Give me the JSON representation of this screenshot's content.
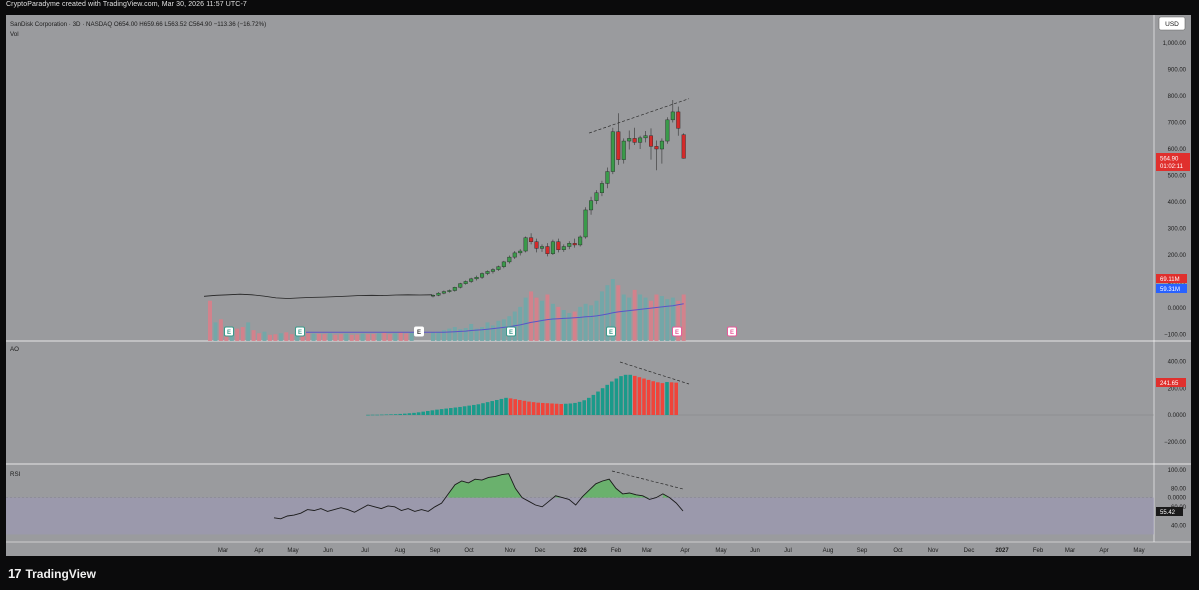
{
  "attribution": "CryptoParadyme created with TradingView.com, Mar 30, 2026 11:57 UTC-7",
  "header": {
    "symbol_line": "SanDisk Corporation · 3D · NASDAQ  O654.00  H659.66  L563.52  C564.90  −113.36 (−16.72%)",
    "vol_label": "Vol"
  },
  "currency_button": "USD",
  "last_price": {
    "value": "564.90",
    "countdown": "01:02:11",
    "color": "#e0302d"
  },
  "volume_badges": [
    {
      "value": "69.11M",
      "color": "#e0302d"
    },
    {
      "value": "59.31M",
      "color": "#2962ff"
    }
  ],
  "ao_label": "AO",
  "ao_value_badge": "241.65",
  "rsi_label": "RSI",
  "rsi_value_badge": "55.42",
  "colors": {
    "up": "#3a9a4a",
    "down": "#d42a2a",
    "vol_up": "#6fa8a8",
    "vol_down": "#d9808a",
    "ao_up": "#1a9a8a",
    "ao_down": "#f0443a",
    "ma": "#5a54c8"
  },
  "chart_data": [
    {
      "type": "candlestick",
      "title": "SanDisk Corporation · 3D · NASDAQ",
      "ylim": [
        -100,
        1100
      ],
      "yticks": [
        "1,000.00",
        "900.00",
        "800.00",
        "700.00",
        "600.00",
        "500.00",
        "400.00",
        "300.00",
        "200.00",
        "100.00",
        "0.0000",
        "−100.00"
      ],
      "x_axis_labels": [
        "Mar",
        "Apr",
        "May",
        "Jun",
        "Jul",
        "Aug",
        "Sep",
        "Oct",
        "Nov",
        "Dec",
        "2026",
        "Feb",
        "Mar",
        "Apr",
        "May",
        "Jun",
        "Jul",
        "Aug",
        "Sep",
        "Oct",
        "Nov",
        "Dec",
        "2027",
        "Feb",
        "Mar",
        "Apr",
        "May"
      ],
      "close_path_early": [
        44,
        48,
        50,
        52,
        50,
        45,
        38,
        36,
        38,
        40,
        41,
        43,
        45,
        47,
        48,
        47,
        49,
        50,
        49,
        50
      ],
      "candles": [
        {
          "o": 45,
          "h": 52,
          "l": 40,
          "c": 48
        },
        {
          "o": 48,
          "h": 60,
          "l": 45,
          "c": 56
        },
        {
          "o": 56,
          "h": 66,
          "l": 52,
          "c": 62
        },
        {
          "o": 62,
          "h": 70,
          "l": 58,
          "c": 66
        },
        {
          "o": 66,
          "h": 80,
          "l": 62,
          "c": 78
        },
        {
          "o": 78,
          "h": 95,
          "l": 74,
          "c": 92
        },
        {
          "o": 92,
          "h": 104,
          "l": 88,
          "c": 100
        },
        {
          "o": 100,
          "h": 114,
          "l": 95,
          "c": 110
        },
        {
          "o": 110,
          "h": 122,
          "l": 104,
          "c": 116
        },
        {
          "o": 116,
          "h": 134,
          "l": 110,
          "c": 130
        },
        {
          "o": 130,
          "h": 142,
          "l": 124,
          "c": 138
        },
        {
          "o": 138,
          "h": 150,
          "l": 130,
          "c": 145
        },
        {
          "o": 145,
          "h": 160,
          "l": 140,
          "c": 156
        },
        {
          "o": 156,
          "h": 178,
          "l": 150,
          "c": 174
        },
        {
          "o": 174,
          "h": 198,
          "l": 168,
          "c": 192
        },
        {
          "o": 192,
          "h": 215,
          "l": 185,
          "c": 208
        },
        {
          "o": 208,
          "h": 222,
          "l": 198,
          "c": 215
        },
        {
          "o": 215,
          "h": 270,
          "l": 210,
          "c": 265
        },
        {
          "o": 265,
          "h": 282,
          "l": 240,
          "c": 250
        },
        {
          "o": 250,
          "h": 262,
          "l": 210,
          "c": 225
        },
        {
          "o": 225,
          "h": 240,
          "l": 212,
          "c": 232
        },
        {
          "o": 232,
          "h": 245,
          "l": 195,
          "c": 205
        },
        {
          "o": 205,
          "h": 258,
          "l": 200,
          "c": 250
        },
        {
          "o": 250,
          "h": 262,
          "l": 210,
          "c": 220
        },
        {
          "o": 220,
          "h": 240,
          "l": 212,
          "c": 232
        },
        {
          "o": 232,
          "h": 252,
          "l": 222,
          "c": 244
        },
        {
          "o": 244,
          "h": 262,
          "l": 228,
          "c": 238
        },
        {
          "o": 238,
          "h": 274,
          "l": 232,
          "c": 268
        },
        {
          "o": 268,
          "h": 380,
          "l": 262,
          "c": 370
        },
        {
          "o": 370,
          "h": 420,
          "l": 352,
          "c": 405
        },
        {
          "o": 405,
          "h": 445,
          "l": 392,
          "c": 435
        },
        {
          "o": 435,
          "h": 480,
          "l": 422,
          "c": 470
        },
        {
          "o": 470,
          "h": 530,
          "l": 452,
          "c": 515
        },
        {
          "o": 515,
          "h": 680,
          "l": 505,
          "c": 665
        },
        {
          "o": 665,
          "h": 735,
          "l": 540,
          "c": 560
        },
        {
          "o": 560,
          "h": 640,
          "l": 545,
          "c": 630
        },
        {
          "o": 630,
          "h": 670,
          "l": 598,
          "c": 640
        },
        {
          "o": 640,
          "h": 680,
          "l": 615,
          "c": 625
        },
        {
          "o": 625,
          "h": 650,
          "l": 600,
          "c": 642
        },
        {
          "o": 642,
          "h": 668,
          "l": 625,
          "c": 650
        },
        {
          "o": 650,
          "h": 678,
          "l": 560,
          "c": 610
        },
        {
          "o": 610,
          "h": 632,
          "l": 520,
          "c": 600
        },
        {
          "o": 600,
          "h": 640,
          "l": 545,
          "c": 630
        },
        {
          "o": 630,
          "h": 720,
          "l": 620,
          "c": 710
        },
        {
          "o": 710,
          "h": 785,
          "l": 700,
          "c": 740
        },
        {
          "o": 740,
          "h": 760,
          "l": 650,
          "c": 678
        },
        {
          "o": 654,
          "h": 659.66,
          "l": 563.52,
          "c": 564.9
        }
      ],
      "volume_early": [
        130,
        60,
        70,
        35,
        30,
        40,
        45,
        60,
        35,
        25,
        30,
        20,
        22,
        25,
        28,
        22,
        20,
        18,
        25,
        24,
        23,
        22,
        25,
        20,
        22,
        24,
        20,
        21,
        24,
        22,
        23,
        25,
        28,
        22,
        25,
        28,
        24,
        27
      ],
      "volume": [
        28,
        30,
        35,
        40,
        45,
        38,
        42,
        55,
        40,
        45,
        60,
        50,
        65,
        70,
        80,
        95,
        110,
        140,
        160,
        140,
        130,
        150,
        120,
        110,
        100,
        90,
        95,
        110,
        120,
        115,
        130,
        160,
        180,
        200,
        180,
        150,
        140,
        165,
        150,
        140,
        130,
        150,
        145,
        135,
        140,
        130,
        150
      ],
      "volume_ma": [
        28,
        28,
        28,
        29,
        30,
        31,
        32,
        34,
        35,
        36,
        38,
        40,
        42,
        44,
        46,
        49,
        52,
        56,
        60,
        63,
        66,
        69,
        71,
        72,
        73,
        74,
        75,
        76,
        78,
        79,
        81,
        84,
        87,
        91,
        94,
        96,
        98,
        100,
        102,
        104,
        106,
        108,
        110,
        112,
        114,
        117,
        120
      ],
      "volume_ma_early_level": 28,
      "event_markers": [
        "E",
        "E",
        "E",
        "E",
        "E",
        "E",
        "E"
      ],
      "trendline": "dashed, rising across the Jan–Mar highs"
    },
    {
      "type": "bar",
      "title": "AO",
      "ylim": [
        -250,
        600
      ],
      "yticks": [
        "400.00",
        "200.00",
        "0.0000",
        "−200.00"
      ],
      "values": [
        1,
        2,
        2,
        3,
        4,
        5,
        6,
        8,
        10,
        13,
        16,
        20,
        25,
        30,
        35,
        40,
        44,
        48,
        52,
        56,
        60,
        65,
        70,
        75,
        80,
        88,
        96,
        104,
        112,
        120,
        128,
        124,
        118,
        112,
        106,
        100,
        96,
        92,
        90,
        88,
        86,
        84,
        82,
        84,
        86,
        90,
        98,
        110,
        128,
        150,
        175,
        200,
        225,
        250,
        272,
        290,
        300,
        300,
        292,
        282,
        272,
        262,
        252,
        244,
        238,
        246,
        244,
        241.65
      ]
    },
    {
      "type": "line",
      "title": "RSI",
      "ylim": [
        25,
        105
      ],
      "yticks": [
        "100.00",
        "80.00",
        "60.00",
        "40.00"
      ],
      "band": [
        30,
        70
      ],
      "values": [
        48,
        47,
        50,
        51,
        53,
        57,
        56,
        58,
        55,
        57,
        59,
        57,
        54,
        58,
        62,
        60,
        58,
        61,
        60,
        56,
        58,
        55,
        57,
        55,
        60,
        64,
        74,
        84,
        88,
        86,
        90,
        89,
        92,
        93,
        95,
        96,
        80,
        70,
        66,
        62,
        60,
        66,
        72,
        70,
        68,
        62,
        71,
        78,
        85,
        88,
        90,
        80,
        74,
        75,
        73,
        72,
        68,
        70,
        74,
        70,
        64,
        55.42
      ]
    }
  ]
}
